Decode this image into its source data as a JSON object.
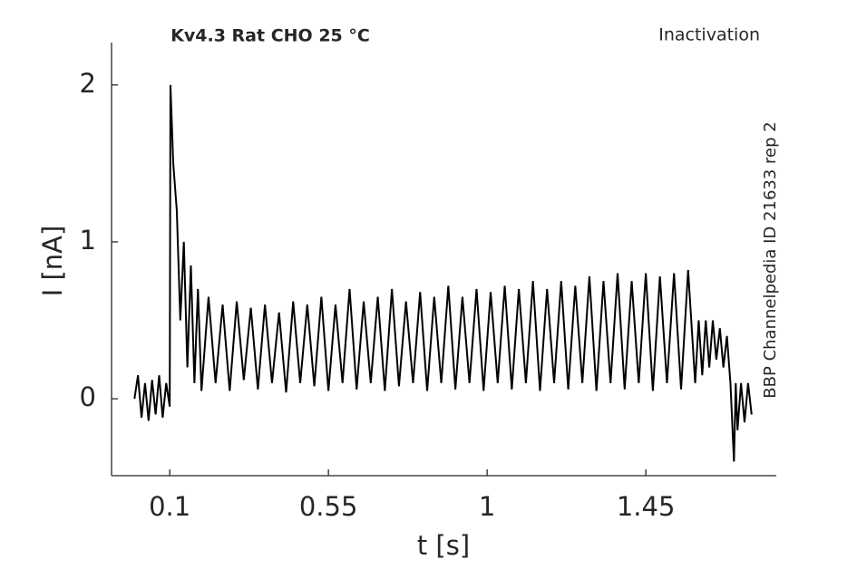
{
  "chart_data": {
    "type": "line",
    "title": "Kv4.3  Rat  CHO  25 °C",
    "subtitle": "Inactivation",
    "annotation": "BBP Channelpedia ID 21633 rep 2",
    "x_label": "t [s]",
    "y_label": "I [nA]",
    "xlim": [
      -0.065,
      1.82
    ],
    "ylim": [
      -0.49,
      2.27
    ],
    "xticks": [
      0.1,
      0.55,
      1,
      1.45
    ],
    "yticks": [
      0,
      1,
      2
    ],
    "series": [
      {
        "color": "#000000",
        "x": [
          0,
          0.01,
          0.02,
          0.03,
          0.04,
          0.05,
          0.06,
          0.07,
          0.08,
          0.09,
          0.1,
          0.102,
          0.11,
          0.12,
          0.13,
          0.14,
          0.15,
          0.16,
          0.17,
          0.18,
          0.19,
          0.21,
          0.23,
          0.25,
          0.27,
          0.29,
          0.31,
          0.33,
          0.35,
          0.37,
          0.39,
          0.41,
          0.43,
          0.45,
          0.47,
          0.49,
          0.51,
          0.53,
          0.55,
          0.57,
          0.59,
          0.61,
          0.63,
          0.65,
          0.67,
          0.69,
          0.71,
          0.73,
          0.75,
          0.77,
          0.79,
          0.81,
          0.83,
          0.85,
          0.87,
          0.89,
          0.91,
          0.93,
          0.95,
          0.97,
          0.99,
          1.01,
          1.03,
          1.05,
          1.07,
          1.09,
          1.11,
          1.13,
          1.15,
          1.17,
          1.19,
          1.21,
          1.23,
          1.25,
          1.27,
          1.29,
          1.31,
          1.33,
          1.35,
          1.37,
          1.39,
          1.41,
          1.43,
          1.45,
          1.47,
          1.49,
          1.51,
          1.53,
          1.55,
          1.57,
          1.59,
          1.6,
          1.61,
          1.62,
          1.63,
          1.64,
          1.65,
          1.66,
          1.67,
          1.68,
          1.69,
          1.7,
          1.705,
          1.71,
          1.72,
          1.73,
          1.74,
          1.75
        ],
        "values": [
          0,
          0.15,
          -0.12,
          0.1,
          -0.14,
          0.12,
          -0.1,
          0.15,
          -0.12,
          0.1,
          -0.05,
          2.0,
          1.5,
          1.2,
          0.5,
          1.0,
          0.2,
          0.85,
          0.1,
          0.7,
          0.05,
          0.65,
          0.1,
          0.6,
          0.05,
          0.62,
          0.12,
          0.58,
          0.06,
          0.6,
          0.1,
          0.55,
          0.04,
          0.62,
          0.1,
          0.6,
          0.08,
          0.65,
          0.05,
          0.6,
          0.1,
          0.7,
          0.06,
          0.62,
          0.1,
          0.65,
          0.05,
          0.7,
          0.08,
          0.62,
          0.1,
          0.68,
          0.05,
          0.65,
          0.1,
          0.72,
          0.06,
          0.65,
          0.1,
          0.7,
          0.05,
          0.68,
          0.1,
          0.72,
          0.06,
          0.7,
          0.1,
          0.75,
          0.05,
          0.7,
          0.1,
          0.75,
          0.06,
          0.72,
          0.1,
          0.78,
          0.05,
          0.75,
          0.1,
          0.8,
          0.06,
          0.75,
          0.1,
          0.8,
          0.05,
          0.78,
          0.1,
          0.8,
          0.06,
          0.82,
          0.1,
          0.5,
          0.15,
          0.5,
          0.2,
          0.5,
          0.25,
          0.45,
          0.2,
          0.4,
          0.1,
          -0.4,
          0.1,
          -0.2,
          0.1,
          -0.15,
          0.1,
          -0.1
        ]
      }
    ]
  }
}
